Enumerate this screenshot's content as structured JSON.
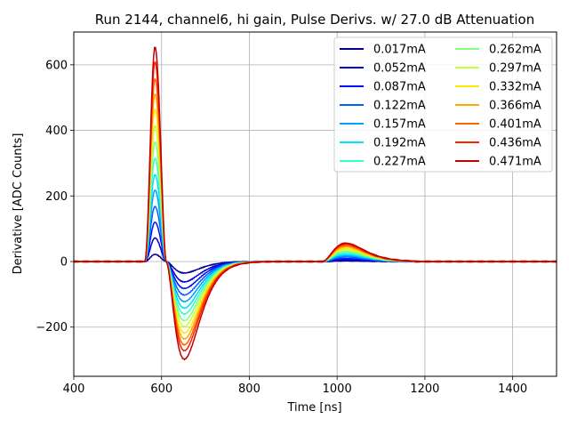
{
  "chart_data": {
    "type": "line",
    "title": "Run 2144, channel6, hi gain, Pulse Derivs. w/ 27.0 dB Attenuation",
    "xlabel": "Time [ns]",
    "ylabel": "Derivative [ADC Counts]",
    "xlim": [
      400,
      1500
    ],
    "ylim": [
      -350,
      700
    ],
    "xticks": [
      400,
      600,
      800,
      1000,
      1200,
      1400
    ],
    "yticks": [
      -200,
      0,
      200,
      400,
      600
    ],
    "xtick_labels": [
      "400",
      "600",
      "800",
      "1000",
      "1200",
      "1400"
    ],
    "ytick_labels": [
      "−200",
      "0",
      "200",
      "400",
      "600"
    ],
    "grid": true,
    "legend_position": "top-right",
    "legend_columns": 2,
    "pulse_shape": {
      "onset_time": 562,
      "peak_time": 585,
      "zero_crossing_time": 610,
      "trough_time": 652,
      "recovery_time": 820,
      "bump_onset_time": 965,
      "bump_peak_time": 1020,
      "bump_end_time": 1180
    },
    "series": [
      {
        "name": "0.017mA",
        "color": "#00008f",
        "peak": 22,
        "trough": -35,
        "bump": 2
      },
      {
        "name": "0.052mA",
        "color": "#0000c8",
        "peak": 72,
        "trough": -62,
        "bump": 5
      },
      {
        "name": "0.087mA",
        "color": "#0010ff",
        "peak": 120,
        "trough": -82,
        "bump": 9
      },
      {
        "name": "0.122mA",
        "color": "#0060ff",
        "peak": 168,
        "trough": -102,
        "bump": 14
      },
      {
        "name": "0.157mA",
        "color": "#00a0ff",
        "peak": 218,
        "trough": -122,
        "bump": 18
      },
      {
        "name": "0.192mA",
        "color": "#00e0ff",
        "peak": 265,
        "trough": -142,
        "bump": 22
      },
      {
        "name": "0.227mA",
        "color": "#30ffc8",
        "peak": 315,
        "trough": -160,
        "bump": 27
      },
      {
        "name": "0.262mA",
        "color": "#80ff80",
        "peak": 365,
        "trough": -180,
        "bump": 31
      },
      {
        "name": "0.297mA",
        "color": "#c8ff38",
        "peak": 415,
        "trough": -198,
        "bump": 36
      },
      {
        "name": "0.332mA",
        "color": "#ffe800",
        "peak": 465,
        "trough": -218,
        "bump": 40
      },
      {
        "name": "0.366mA",
        "color": "#ffaa00",
        "peak": 512,
        "trough": -236,
        "bump": 45
      },
      {
        "name": "0.401mA",
        "color": "#ff6400",
        "peak": 558,
        "trough": -254,
        "bump": 49
      },
      {
        "name": "0.436mA",
        "color": "#ff2000",
        "peak": 610,
        "trough": -272,
        "bump": 53
      },
      {
        "name": "0.471mA",
        "color": "#c00000",
        "peak": 655,
        "trough": -298,
        "bump": 56
      }
    ]
  }
}
